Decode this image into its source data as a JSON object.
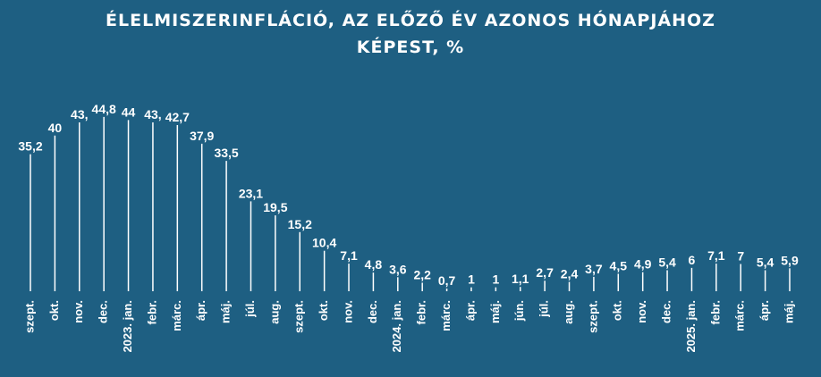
{
  "title_line1": "ÉLELMISZERINFLÁCIÓ, AZ ELŐZŐ ÉV AZONOS HÓNAPJÁHOZ",
  "title_line2": "KÉPEST, %",
  "colors": {
    "background": "#1e5f82",
    "marks": "#ffffff"
  },
  "chart_data": {
    "type": "line",
    "title": "ÉLELMISZERINFLÁCIÓ, AZ ELŐZŐ ÉV AZONOS HÓNAPJÁHOZ KÉPEST, %",
    "xlabel": "",
    "ylabel": "",
    "grid": false,
    "legend": "none",
    "ylim": [
      0,
      45
    ],
    "categories": [
      "szept.",
      "okt.",
      "nov.",
      "dec.",
      "2023. jan.",
      "febr.",
      "márc.",
      "ápr.",
      "máj.",
      "júl.",
      "aug.",
      "szept.",
      "okt.",
      "nov.",
      "dec.",
      "2024. jan.",
      "febr.",
      "márc.",
      "ápr.",
      "máj.",
      "jún.",
      "júl.",
      "aug.",
      "szept.",
      "okt.",
      "nov.",
      "dec.",
      "2025. jan.",
      "febr.",
      "márc.",
      "ápr.",
      "máj."
    ],
    "values": [
      35.2,
      40,
      43.4,
      44.8,
      44,
      43.4,
      42.7,
      37.9,
      33.5,
      23.1,
      19.5,
      15.2,
      10.4,
      7.1,
      4.8,
      3.6,
      2.2,
      0.7,
      1,
      1,
      1.1,
      2.7,
      2.4,
      3.7,
      4.5,
      4.9,
      5.4,
      6,
      7.1,
      7,
      5.4,
      5.9
    ],
    "data_labels": [
      "35,2",
      "40",
      "43,",
      "44,8",
      "44",
      "43,",
      "42,7",
      "37,9",
      "33,5",
      "23,1",
      "19,5",
      "15,2",
      "10,4",
      "7,1",
      "4,8",
      "3,6",
      "2,2",
      "0,7",
      "1",
      "1",
      "1,1",
      "2,7",
      "2,4",
      "3,7",
      "4,5",
      "4,9",
      "5,4",
      "6",
      "7,1",
      "7",
      "5,4",
      "5,9"
    ]
  }
}
